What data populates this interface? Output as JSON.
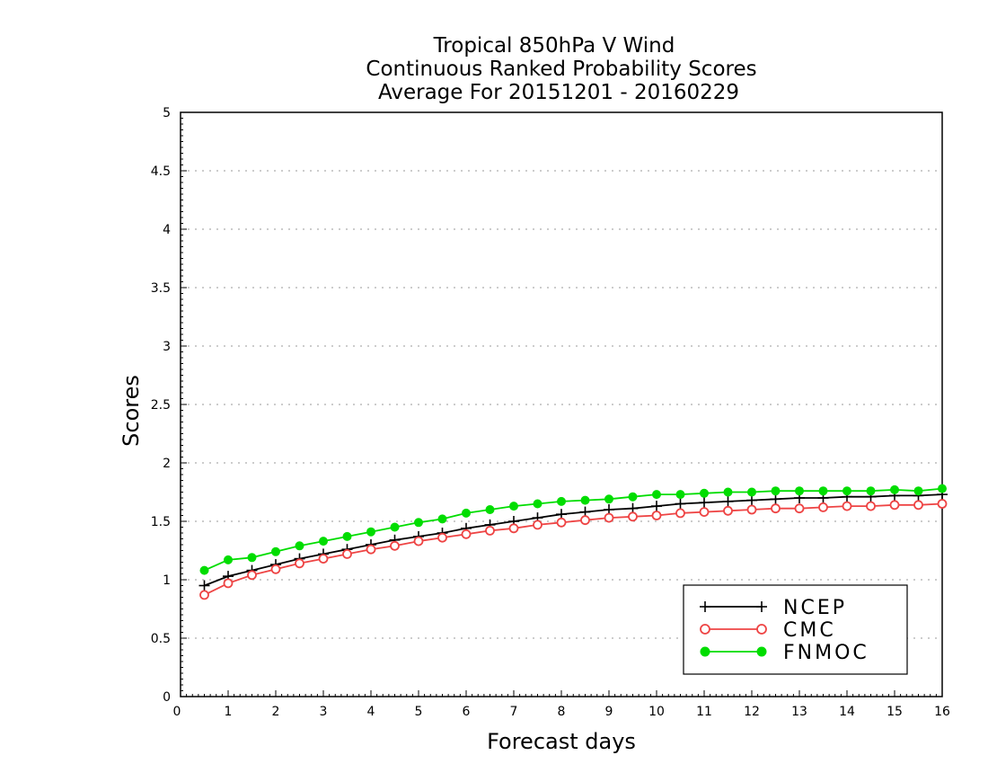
{
  "chart_data": {
    "type": "line",
    "title": [
      "Tropical 850hPa V Wind",
      "Continuous Ranked Probability Scores",
      "Average For 20151201 - 20160229"
    ],
    "xlabel": "Forecast days",
    "ylabel": "Scores",
    "xlim": [
      0,
      16
    ],
    "ylim": [
      0,
      5
    ],
    "xticks": [
      0,
      1,
      2,
      3,
      4,
      5,
      6,
      7,
      8,
      9,
      10,
      11,
      12,
      13,
      14,
      15,
      16
    ],
    "xtick_labels": [
      "0",
      "1",
      "2",
      "3",
      "4",
      "5",
      "6",
      "7",
      "8",
      "9",
      "10",
      "11",
      "12",
      "13",
      "14",
      "15",
      "16"
    ],
    "yticks": [
      0,
      0.5,
      1,
      1.5,
      2,
      2.5,
      3,
      3.5,
      4,
      4.5,
      5
    ],
    "ytick_labels": [
      "0",
      "0.5",
      "1",
      "1.5",
      "2",
      "2.5",
      "3",
      "3.5",
      "4",
      "4.5",
      "5"
    ],
    "grid": "horizontal dotted",
    "legend_position": "bottom-right",
    "x": [
      0.5,
      1,
      1.5,
      2,
      2.5,
      3,
      3.5,
      4,
      4.5,
      5,
      5.5,
      6,
      6.5,
      7,
      7.5,
      8,
      8.5,
      9,
      9.5,
      10,
      10.5,
      11,
      11.5,
      12,
      12.5,
      13,
      13.5,
      14,
      14.5,
      15,
      15.5,
      16
    ],
    "series": [
      {
        "name": "NCEP",
        "color": "#000000",
        "marker": "plus",
        "values": [
          0.95,
          1.03,
          1.08,
          1.13,
          1.18,
          1.22,
          1.26,
          1.3,
          1.34,
          1.37,
          1.4,
          1.44,
          1.47,
          1.5,
          1.53,
          1.56,
          1.58,
          1.6,
          1.61,
          1.63,
          1.65,
          1.66,
          1.67,
          1.68,
          1.69,
          1.7,
          1.7,
          1.71,
          1.71,
          1.72,
          1.72,
          1.73
        ]
      },
      {
        "name": "CMC",
        "color": "#ee4444",
        "marker": "open-circle",
        "values": [
          0.87,
          0.97,
          1.04,
          1.09,
          1.14,
          1.18,
          1.22,
          1.26,
          1.29,
          1.33,
          1.36,
          1.39,
          1.42,
          1.44,
          1.47,
          1.49,
          1.51,
          1.53,
          1.54,
          1.55,
          1.57,
          1.58,
          1.59,
          1.6,
          1.61,
          1.61,
          1.62,
          1.63,
          1.63,
          1.64,
          1.64,
          1.65
        ]
      },
      {
        "name": "FNMOC",
        "color": "#00dd00",
        "marker": "filled-circle",
        "values": [
          1.08,
          1.17,
          1.19,
          1.24,
          1.29,
          1.33,
          1.37,
          1.41,
          1.45,
          1.49,
          1.52,
          1.57,
          1.6,
          1.63,
          1.65,
          1.67,
          1.68,
          1.69,
          1.71,
          1.73,
          1.73,
          1.74,
          1.75,
          1.75,
          1.76,
          1.76,
          1.76,
          1.76,
          1.76,
          1.77,
          1.76,
          1.78
        ]
      }
    ]
  }
}
